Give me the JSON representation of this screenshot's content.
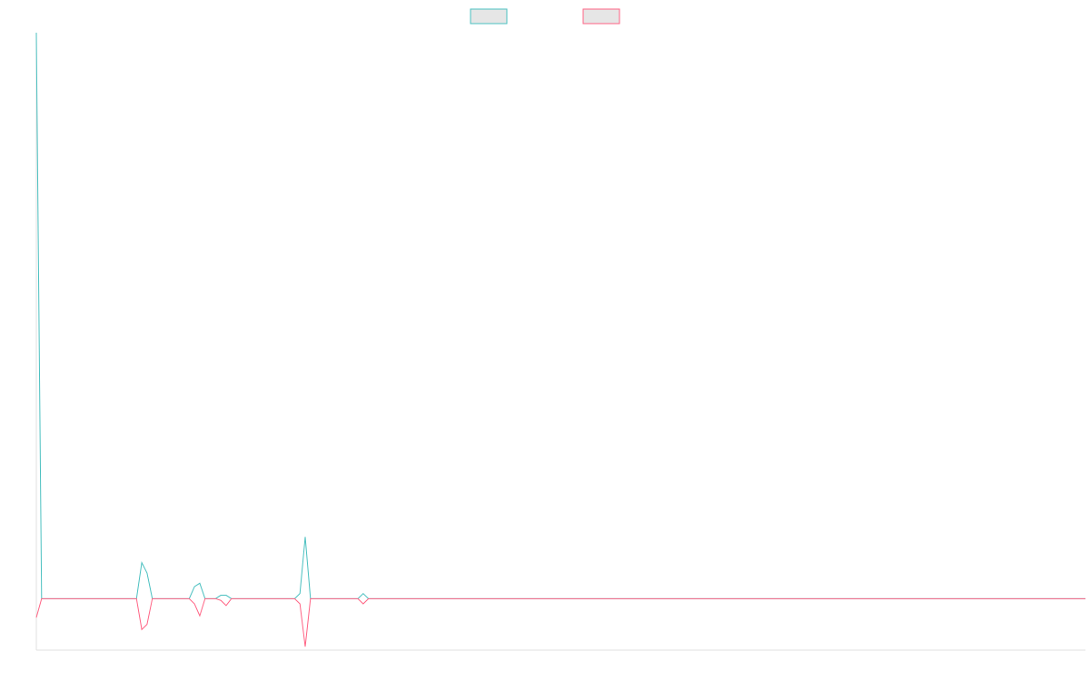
{
  "colors": {
    "series_a": "#4bc0c0",
    "series_b": "#ff6384",
    "legend_fill": "#e6e6e6",
    "axis": "#e0e0e0"
  },
  "legend": {
    "placement": "top-center",
    "items": [
      {
        "label": ""
      },
      {
        "label": ""
      }
    ]
  },
  "chart_data": {
    "type": "line",
    "title": "",
    "xlabel": "",
    "ylabel": "",
    "grid": false,
    "point_count": 200,
    "ylim": [
      -3,
      33
    ],
    "series": [
      {
        "color_key": "series_a",
        "points": [
          [
            0,
            33
          ],
          [
            1,
            0
          ],
          [
            19,
            0
          ],
          [
            20,
            2.1
          ],
          [
            21,
            1.5
          ],
          [
            22,
            0
          ],
          [
            29,
            0
          ],
          [
            30,
            0.7
          ],
          [
            31,
            0.9
          ],
          [
            32,
            0
          ],
          [
            34,
            0
          ],
          [
            35,
            0.2
          ],
          [
            36,
            0.2
          ],
          [
            37,
            0
          ],
          [
            49,
            0
          ],
          [
            50,
            0.3
          ],
          [
            51,
            3.6
          ],
          [
            52,
            0
          ],
          [
            61,
            0
          ],
          [
            62,
            0.3
          ],
          [
            63,
            0
          ],
          [
            199,
            0
          ]
        ]
      },
      {
        "color_key": "series_b",
        "points": [
          [
            0,
            -1.1
          ],
          [
            1,
            0
          ],
          [
            19,
            0
          ],
          [
            20,
            -1.8
          ],
          [
            21,
            -1.5
          ],
          [
            22,
            0
          ],
          [
            29,
            0
          ],
          [
            30,
            -0.3
          ],
          [
            31,
            -1.0
          ],
          [
            32,
            0
          ],
          [
            34,
            0
          ],
          [
            35,
            -0.1
          ],
          [
            36,
            -0.4
          ],
          [
            37,
            0
          ],
          [
            49,
            0
          ],
          [
            50,
            -0.3
          ],
          [
            51,
            -2.8
          ],
          [
            52,
            0
          ],
          [
            61,
            0
          ],
          [
            62,
            -0.3
          ],
          [
            63,
            0
          ],
          [
            199,
            0
          ]
        ]
      }
    ]
  }
}
